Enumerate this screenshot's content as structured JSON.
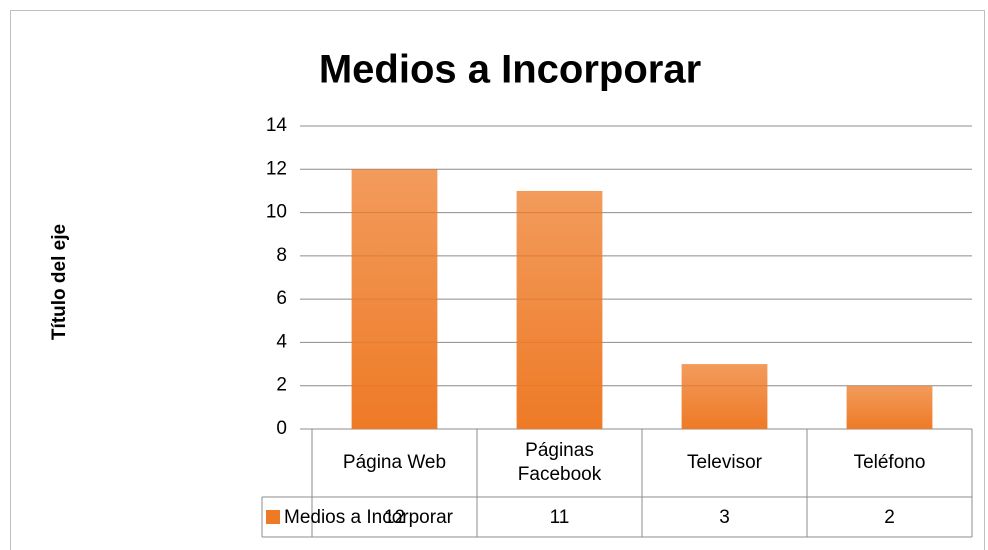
{
  "chart_data": {
    "type": "bar",
    "title": "Medios a Incorporar",
    "y_axis_label": "Título del eje",
    "categories": [
      "Página Web",
      "Páginas Facebook",
      "Televisor",
      "Teléfono"
    ],
    "series": [
      {
        "name": "Medios a Incorporar",
        "color": "#ee7a26",
        "values": [
          12,
          11,
          3,
          2
        ]
      }
    ],
    "ylim": [
      0,
      14
    ],
    "yticks": [
      0,
      2,
      4,
      6,
      8,
      10,
      12,
      14
    ],
    "grid": true,
    "data_table": true
  }
}
